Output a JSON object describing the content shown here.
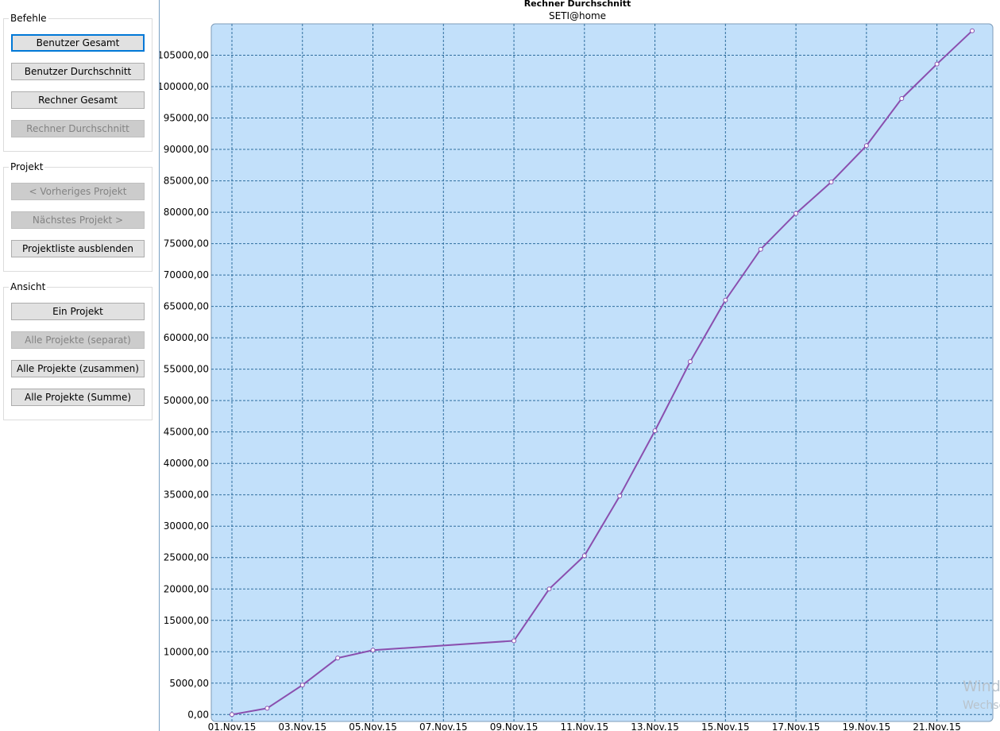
{
  "sidebar": {
    "groups": [
      {
        "title": "Befehle",
        "buttons": [
          {
            "label": "Benutzer Gesamt",
            "enabled": true,
            "focused": true
          },
          {
            "label": "Benutzer Durchschnitt",
            "enabled": true
          },
          {
            "label": "Rechner Gesamt",
            "enabled": true
          },
          {
            "label": "Rechner Durchschnitt",
            "enabled": false
          }
        ]
      },
      {
        "title": "Projekt",
        "buttons": [
          {
            "label": "< Vorheriges Projekt",
            "enabled": false
          },
          {
            "label": "Nächstes Projekt >",
            "enabled": false
          },
          {
            "label": "Projektliste ausblenden",
            "enabled": true
          }
        ]
      },
      {
        "title": "Ansicht",
        "buttons": [
          {
            "label": "Ein Projekt",
            "enabled": true
          },
          {
            "label": "Alle Projekte (separat)",
            "enabled": false
          },
          {
            "label": "Alle Projekte (zusammen)",
            "enabled": true
          },
          {
            "label": "Alle Projekte (Summe)",
            "enabled": true
          }
        ]
      }
    ]
  },
  "watermark": [
    "Wind",
    "Wechse"
  ],
  "chart_data": {
    "type": "line",
    "title": "Rechner Durchschnitt",
    "subtitle": "SETI@home",
    "x": [
      "01.Nov.15",
      "02.Nov.15",
      "03.Nov.15",
      "04.Nov.15",
      "05.Nov.15",
      "09.Nov.15",
      "10.Nov.15",
      "11.Nov.15",
      "12.Nov.15",
      "13.Nov.15",
      "14.Nov.15",
      "15.Nov.15",
      "16.Nov.15",
      "17.Nov.15",
      "18.Nov.15",
      "19.Nov.15",
      "20.Nov.15",
      "21.Nov.15",
      "22.Nov.15"
    ],
    "series": [
      {
        "name": "SETI@home",
        "color": "#8a4fae",
        "values": [
          0,
          1000,
          4700,
          9000,
          10250,
          11750,
          20000,
          25300,
          34800,
          45200,
          56200,
          66000,
          74100,
          79800,
          84800,
          90600,
          98100,
          103600,
          108900
        ]
      }
    ],
    "xticks": [
      "01.Nov.15",
      "03.Nov.15",
      "05.Nov.15",
      "07.Nov.15",
      "09.Nov.15",
      "11.Nov.15",
      "13.Nov.15",
      "15.Nov.15",
      "17.Nov.15",
      "19.Nov.15",
      "21.Nov.15"
    ],
    "xlim": [
      "01.Nov.15",
      "22.Nov.15"
    ],
    "ylim": [
      -1100,
      110000
    ],
    "yticks": [
      {
        "value": 0,
        "label": "0,00"
      },
      {
        "value": 5000,
        "label": "5000,00"
      },
      {
        "value": 10000,
        "label": "10000,00"
      },
      {
        "value": 15000,
        "label": "15000,00"
      },
      {
        "value": 20000,
        "label": "20000,00"
      },
      {
        "value": 25000,
        "label": "25000,00"
      },
      {
        "value": 30000,
        "label": "30000,00"
      },
      {
        "value": 35000,
        "label": "35000,00"
      },
      {
        "value": 40000,
        "label": "40000,00"
      },
      {
        "value": 45000,
        "label": "45000,00"
      },
      {
        "value": 50000,
        "label": "50000,00"
      },
      {
        "value": 55000,
        "label": "55000,00"
      },
      {
        "value": 60000,
        "label": "60000,00"
      },
      {
        "value": 65000,
        "label": "65000,00"
      },
      {
        "value": 70000,
        "label": "70000,00"
      },
      {
        "value": 75000,
        "label": "75000,00"
      },
      {
        "value": 80000,
        "label": "80000,00"
      },
      {
        "value": 85000,
        "label": "85000,00"
      },
      {
        "value": 90000,
        "label": "90000,00"
      },
      {
        "value": 95000,
        "label": "95000,00"
      },
      {
        "value": 100000,
        "label": "100000,00"
      },
      {
        "value": 105000,
        "label": "105000,00"
      }
    ],
    "grid": true,
    "plot_background": "#c2e0fa",
    "grid_color": "#2f6e9e"
  }
}
